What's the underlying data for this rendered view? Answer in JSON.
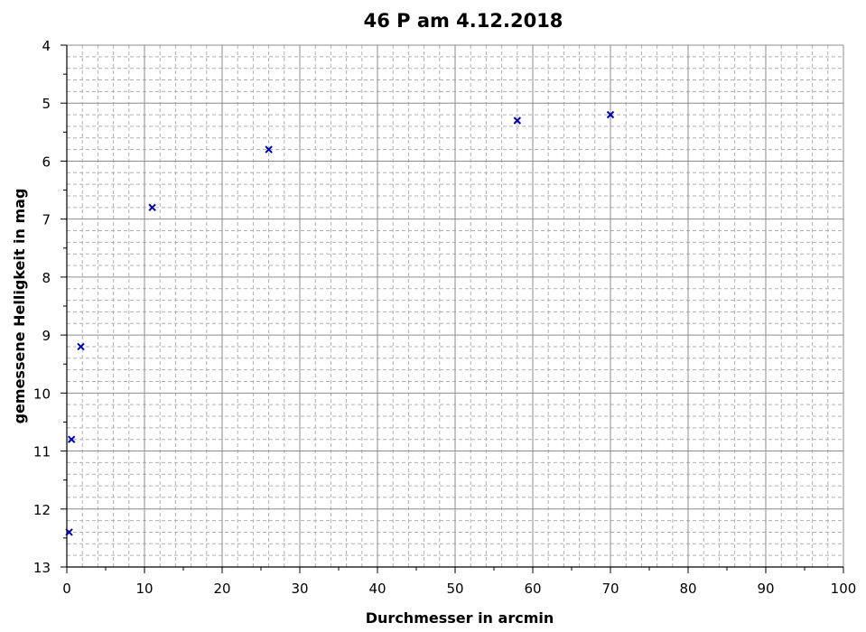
{
  "chart_data": {
    "type": "scatter",
    "title": "46 P am 4.12.2018",
    "xlabel": "Durchmesser in arcmin",
    "ylabel": "gemessene Helligkeit in mag",
    "xlim": [
      0,
      100
    ],
    "ylim": [
      4,
      13
    ],
    "y_inverted": true,
    "x_ticks": [
      "0",
      "10",
      "20",
      "30",
      "40",
      "50",
      "60",
      "70",
      "80",
      "90",
      "100"
    ],
    "y_ticks": [
      "4",
      "5",
      "6",
      "7",
      "8",
      "9",
      "10",
      "11",
      "12",
      "13"
    ],
    "grid": true,
    "marker": "x",
    "marker_color": "#0000aa",
    "series": [
      {
        "x": [
          0.3,
          0.6,
          1.8,
          11,
          26,
          58,
          70
        ],
        "y": [
          12.4,
          10.8,
          9.2,
          6.8,
          5.8,
          5.3,
          5.2
        ]
      }
    ]
  }
}
